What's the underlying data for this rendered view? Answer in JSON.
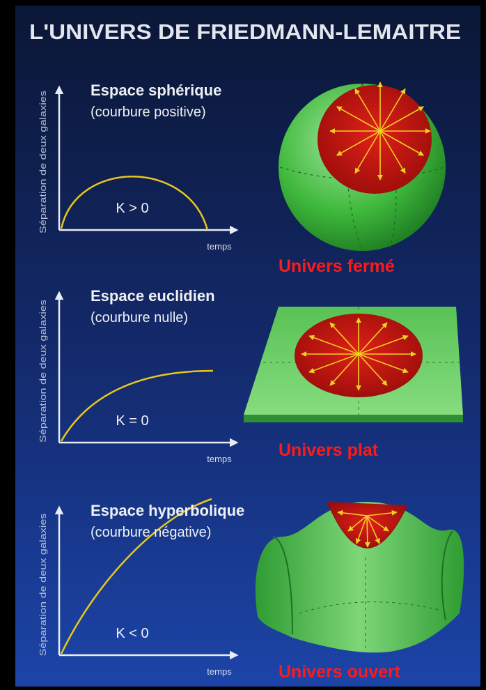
{
  "title": "L'UNIVERS DE FRIEDMANN-LEMAITRE",
  "panels": [
    {
      "heading": "Espace sphérique",
      "subheading": "(courbure positive)",
      "curvature_label": "K > 0",
      "x_axis_label": "temps",
      "y_axis_label": "Séparation de deux galaxies",
      "universe_label": "Univers fermé"
    },
    {
      "heading": "Espace euclidien",
      "subheading": "(courbure nulle)",
      "curvature_label": "K = 0",
      "x_axis_label": "temps",
      "y_axis_label": "Séparation de deux galaxies",
      "universe_label": "Univers plat"
    },
    {
      "heading": "Espace hyperbolique",
      "subheading": "(courbure négative)",
      "curvature_label": "K < 0",
      "x_axis_label": "temps",
      "y_axis_label": "Séparation de deux galaxies",
      "universe_label": "Univers ouvert"
    }
  ]
}
